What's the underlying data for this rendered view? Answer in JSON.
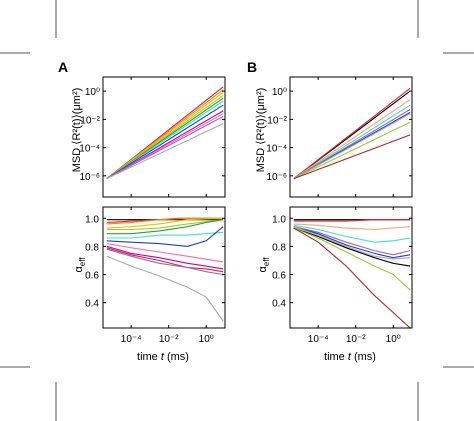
{
  "panels": {
    "A": {
      "letter": "A"
    },
    "B": {
      "letter": "B"
    }
  },
  "labels": {
    "msd_ylabel": "MSD ⟨R²(t)⟩(μm²)",
    "alpha_ylabel": "αeff",
    "alpha_base": "α",
    "alpha_sub": "eff",
    "xlabel_text": "time ",
    "xlabel_var": "t",
    "xlabel_unit": " (ms)"
  },
  "axis_ticks": {
    "msd_y": [
      "10⁰",
      "10⁻²",
      "10⁻⁴",
      "10⁻⁶"
    ],
    "msd_y_exponents": [
      0,
      -2,
      -4,
      -6
    ],
    "alpha_y": [
      "1.0",
      "0.8",
      "0.6",
      "0.4"
    ],
    "alpha_y_values": [
      1.0,
      0.8,
      0.6,
      0.4
    ],
    "x": [
      "10⁻⁴",
      "10⁻²",
      "10⁰"
    ],
    "x_exponents": [
      -4,
      -2,
      0
    ]
  },
  "chart_data": [
    {
      "panel": "A",
      "type": "line",
      "x_scale": "log",
      "y_scale": "log",
      "xlim": [
        -5.5,
        1.0
      ],
      "ylim": [
        -7.5,
        1.0
      ],
      "xlabel": "",
      "ylabel": "MSD ⟨R²(t)⟩(μm²)",
      "series": [
        {
          "color": "#d62728",
          "x": [
            -5.3,
            0.9
          ],
          "y": [
            -6.2,
            0.3
          ]
        },
        {
          "color": "#ff7f0e",
          "x": [
            -5.3,
            0.9
          ],
          "y": [
            -6.2,
            0.1
          ]
        },
        {
          "color": "#e6c200",
          "x": [
            -5.3,
            0.9
          ],
          "y": [
            -6.2,
            -0.1
          ]
        },
        {
          "color": "#9acd32",
          "x": [
            -5.3,
            0.9
          ],
          "y": [
            -6.2,
            -0.3
          ]
        },
        {
          "color": "#2ca02c",
          "x": [
            -5.3,
            0.9
          ],
          "y": [
            -6.2,
            -0.5
          ]
        },
        {
          "color": "#40e0d0",
          "x": [
            -5.3,
            0.9
          ],
          "y": [
            -6.2,
            -0.7
          ]
        },
        {
          "color": "#1f3fbf",
          "x": [
            -5.3,
            0.9
          ],
          "y": [
            -6.2,
            -1.0
          ]
        },
        {
          "color": "#c000c0",
          "x": [
            -5.3,
            0.9
          ],
          "y": [
            -6.2,
            -1.4
          ]
        },
        {
          "color": "#ff69b4",
          "x": [
            -5.3,
            0.9
          ],
          "y": [
            -6.2,
            -1.6
          ]
        },
        {
          "color": "#9467bd",
          "x": [
            -5.3,
            0.9
          ],
          "y": [
            -6.2,
            -1.8
          ]
        },
        {
          "color": "#aaaaaa",
          "x": [
            -5.3,
            0.9
          ],
          "y": [
            -6.2,
            -2.3
          ]
        }
      ]
    },
    {
      "panel": "B",
      "type": "line",
      "x_scale": "log",
      "y_scale": "log",
      "xlim": [
        -5.5,
        1.0
      ],
      "ylim": [
        -7.5,
        1.0
      ],
      "xlabel": "",
      "ylabel": "MSD ⟨R²(t)⟩(μm²)",
      "series": [
        {
          "color": "#000000",
          "x": [
            -5.3,
            0.9
          ],
          "y": [
            -6.2,
            0.0
          ]
        },
        {
          "color": "#d62728",
          "x": [
            -5.3,
            0.9
          ],
          "y": [
            -6.2,
            0.2
          ]
        },
        {
          "color": "#ffa07a",
          "x": [
            -5.3,
            0.9
          ],
          "y": [
            -6.2,
            -0.6
          ]
        },
        {
          "color": "#40e0d0",
          "x": [
            -5.3,
            0.9
          ],
          "y": [
            -6.2,
            -1.0
          ]
        },
        {
          "color": "#9467bd",
          "x": [
            -5.3,
            0.9
          ],
          "y": [
            -6.2,
            -1.3
          ]
        },
        {
          "color": "#1f3fbf",
          "x": [
            -5.3,
            0.9
          ],
          "y": [
            -6.2,
            -1.5
          ]
        },
        {
          "color": "#aaaaaa",
          "x": [
            -5.3,
            0.9
          ],
          "y": [
            -6.2,
            -1.6
          ]
        },
        {
          "color": "#9acd32",
          "x": [
            -5.3,
            0.9
          ],
          "y": [
            -6.2,
            -2.2
          ]
        },
        {
          "color": "#b22222",
          "x": [
            -5.3,
            0.9
          ],
          "y": [
            -6.2,
            -3.1
          ]
        }
      ]
    },
    {
      "panel": "A",
      "type": "line",
      "x_scale": "log",
      "xlim": [
        -5.5,
        1.0
      ],
      "ylim": [
        0.22,
        1.08
      ],
      "xlabel": "time t (ms)",
      "ylabel": "αeff",
      "series": [
        {
          "color": "#000000",
          "x": [
            -5.3,
            -4.0,
            -2.5,
            -1.0,
            0.9
          ],
          "y": [
            0.99,
            0.99,
            0.99,
            0.99,
            0.99
          ]
        },
        {
          "color": "#d62728",
          "x": [
            -5.3,
            -4.0,
            -2.5,
            -1.5,
            0.9
          ],
          "y": [
            0.97,
            0.98,
            0.99,
            1.0,
            1.0
          ]
        },
        {
          "color": "#ff7f0e",
          "x": [
            -5.3,
            -4.0,
            -2.5,
            -1.0,
            0.9
          ],
          "y": [
            0.96,
            0.97,
            0.99,
            1.0,
            1.0
          ]
        },
        {
          "color": "#e6c200",
          "x": [
            -5.3,
            -4.0,
            -2.5,
            -1.0,
            0.9
          ],
          "y": [
            0.93,
            0.94,
            0.96,
            0.99,
            1.0
          ]
        },
        {
          "color": "#9acd32",
          "x": [
            -5.3,
            -4.0,
            -2.5,
            -1.0,
            0.9
          ],
          "y": [
            0.92,
            0.92,
            0.93,
            0.96,
            0.99
          ]
        },
        {
          "color": "#2ca02c",
          "x": [
            -5.3,
            -4.0,
            -2.5,
            -1.0,
            0.0,
            0.9
          ],
          "y": [
            0.89,
            0.89,
            0.91,
            0.94,
            0.97,
            0.99
          ]
        },
        {
          "color": "#40e0d0",
          "x": [
            -5.3,
            -4.0,
            -2.5,
            -1.0,
            0.9
          ],
          "y": [
            0.86,
            0.86,
            0.88,
            0.88,
            0.9
          ]
        },
        {
          "color": "#1f3fbf",
          "x": [
            -5.3,
            -4.0,
            -2.5,
            -1.0,
            0.0,
            0.9
          ],
          "y": [
            0.84,
            0.83,
            0.82,
            0.8,
            0.84,
            0.94
          ]
        },
        {
          "color": "#ff69b4",
          "x": [
            -5.3,
            -4.0,
            -2.5,
            -1.0,
            0.9
          ],
          "y": [
            0.82,
            0.79,
            0.76,
            0.73,
            0.69
          ]
        },
        {
          "color": "#c000c0",
          "x": [
            -5.3,
            -4.0,
            -2.5,
            -1.0,
            0.0,
            0.9
          ],
          "y": [
            0.8,
            0.75,
            0.72,
            0.68,
            0.66,
            0.64
          ]
        },
        {
          "color": "#d62728",
          "x": [
            -5.3,
            -4.0,
            -2.5,
            -1.0,
            0.0,
            0.9
          ],
          "y": [
            0.79,
            0.74,
            0.7,
            0.65,
            0.64,
            0.62
          ]
        },
        {
          "color": "#9467bd",
          "x": [
            -5.3,
            -4.0,
            -2.5,
            -1.0,
            0.0,
            0.9
          ],
          "y": [
            0.78,
            0.73,
            0.68,
            0.65,
            0.62,
            0.6
          ]
        },
        {
          "color": "#aaaaaa",
          "x": [
            -5.3,
            -4.0,
            -2.5,
            -1.0,
            0.0,
            0.9
          ],
          "y": [
            0.73,
            0.66,
            0.59,
            0.51,
            0.44,
            0.27
          ]
        }
      ]
    },
    {
      "panel": "B",
      "type": "line",
      "x_scale": "log",
      "xlim": [
        -5.5,
        1.0
      ],
      "ylim": [
        0.22,
        1.08
      ],
      "xlabel": "time t (ms)",
      "ylabel": "αeff",
      "series": [
        {
          "color": "#000000",
          "x": [
            -5.3,
            -3.0,
            0.9
          ],
          "y": [
            0.99,
            0.99,
            0.99
          ]
        },
        {
          "color": "#d62728",
          "x": [
            -5.3,
            -4.0,
            -2.5,
            -1.0,
            0.9
          ],
          "y": [
            0.98,
            0.98,
            0.98,
            0.99,
            0.99
          ]
        },
        {
          "color": "#ffa07a",
          "x": [
            -5.3,
            -4.0,
            -2.5,
            -1.0,
            0.9
          ],
          "y": [
            0.96,
            0.95,
            0.93,
            0.92,
            0.94
          ]
        },
        {
          "color": "#40e0d0",
          "x": [
            -5.3,
            -4.0,
            -2.5,
            -1.0,
            0.0,
            0.9
          ],
          "y": [
            0.95,
            0.92,
            0.87,
            0.83,
            0.84,
            0.86
          ]
        },
        {
          "color": "#9467bd",
          "x": [
            -5.3,
            -4.0,
            -2.5,
            -1.0,
            0.0,
            0.9
          ],
          "y": [
            0.94,
            0.9,
            0.83,
            0.77,
            0.74,
            0.77
          ]
        },
        {
          "color": "#1f3fbf",
          "x": [
            -5.3,
            -4.0,
            -2.5,
            -1.0,
            0.0,
            0.9
          ],
          "y": [
            0.94,
            0.89,
            0.81,
            0.75,
            0.72,
            0.74
          ]
        },
        {
          "color": "#aaaaaa",
          "x": [
            -5.3,
            -4.0,
            -2.5,
            -1.0,
            0.0,
            0.9
          ],
          "y": [
            0.94,
            0.88,
            0.8,
            0.73,
            0.71,
            0.72
          ]
        },
        {
          "color": "#000000",
          "x": [
            -5.3,
            -4.0,
            -2.5,
            -1.0,
            0.0,
            0.9
          ],
          "y": [
            0.93,
            0.87,
            0.79,
            0.72,
            0.68,
            0.66
          ]
        },
        {
          "color": "#9acd32",
          "x": [
            -5.3,
            -4.0,
            -2.5,
            -1.0,
            0.0,
            0.9
          ],
          "y": [
            0.93,
            0.86,
            0.76,
            0.66,
            0.6,
            0.49
          ]
        },
        {
          "color": "#b22222",
          "x": [
            -5.3,
            -4.0,
            -2.5,
            -1.0,
            0.0,
            0.9
          ],
          "y": [
            0.93,
            0.83,
            0.66,
            0.45,
            0.33,
            0.22
          ]
        }
      ]
    }
  ]
}
